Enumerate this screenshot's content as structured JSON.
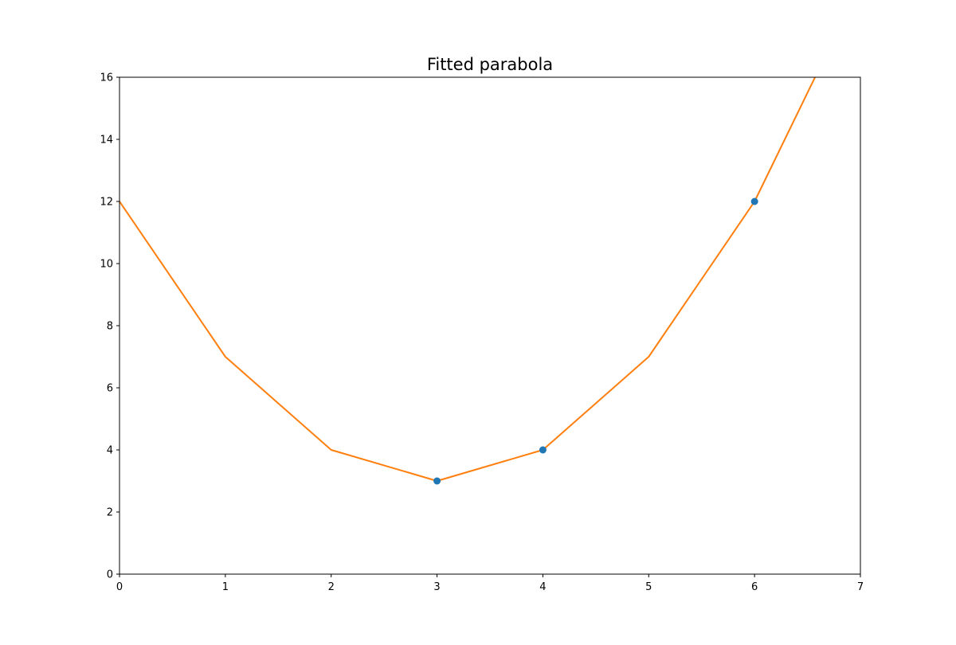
{
  "chart_data": {
    "type": "line",
    "title": "Fitted parabola",
    "xlabel": "",
    "ylabel": "",
    "xlim": [
      0,
      7
    ],
    "ylim": [
      0,
      16
    ],
    "xticks": [
      0,
      1,
      2,
      3,
      4,
      5,
      6,
      7
    ],
    "yticks": [
      0,
      2,
      4,
      6,
      8,
      10,
      12,
      14,
      16
    ],
    "grid": false,
    "series": [
      {
        "kind": "scatter",
        "color": "#1f77b4",
        "x": [
          3,
          4,
          6
        ],
        "y": [
          3,
          4,
          12
        ]
      },
      {
        "kind": "line",
        "color": "#ff7f0e",
        "x": [
          0,
          1,
          2,
          3,
          4,
          5,
          6,
          7
        ],
        "y": [
          12,
          7,
          4,
          3,
          4,
          7,
          12,
          19
        ]
      }
    ]
  }
}
